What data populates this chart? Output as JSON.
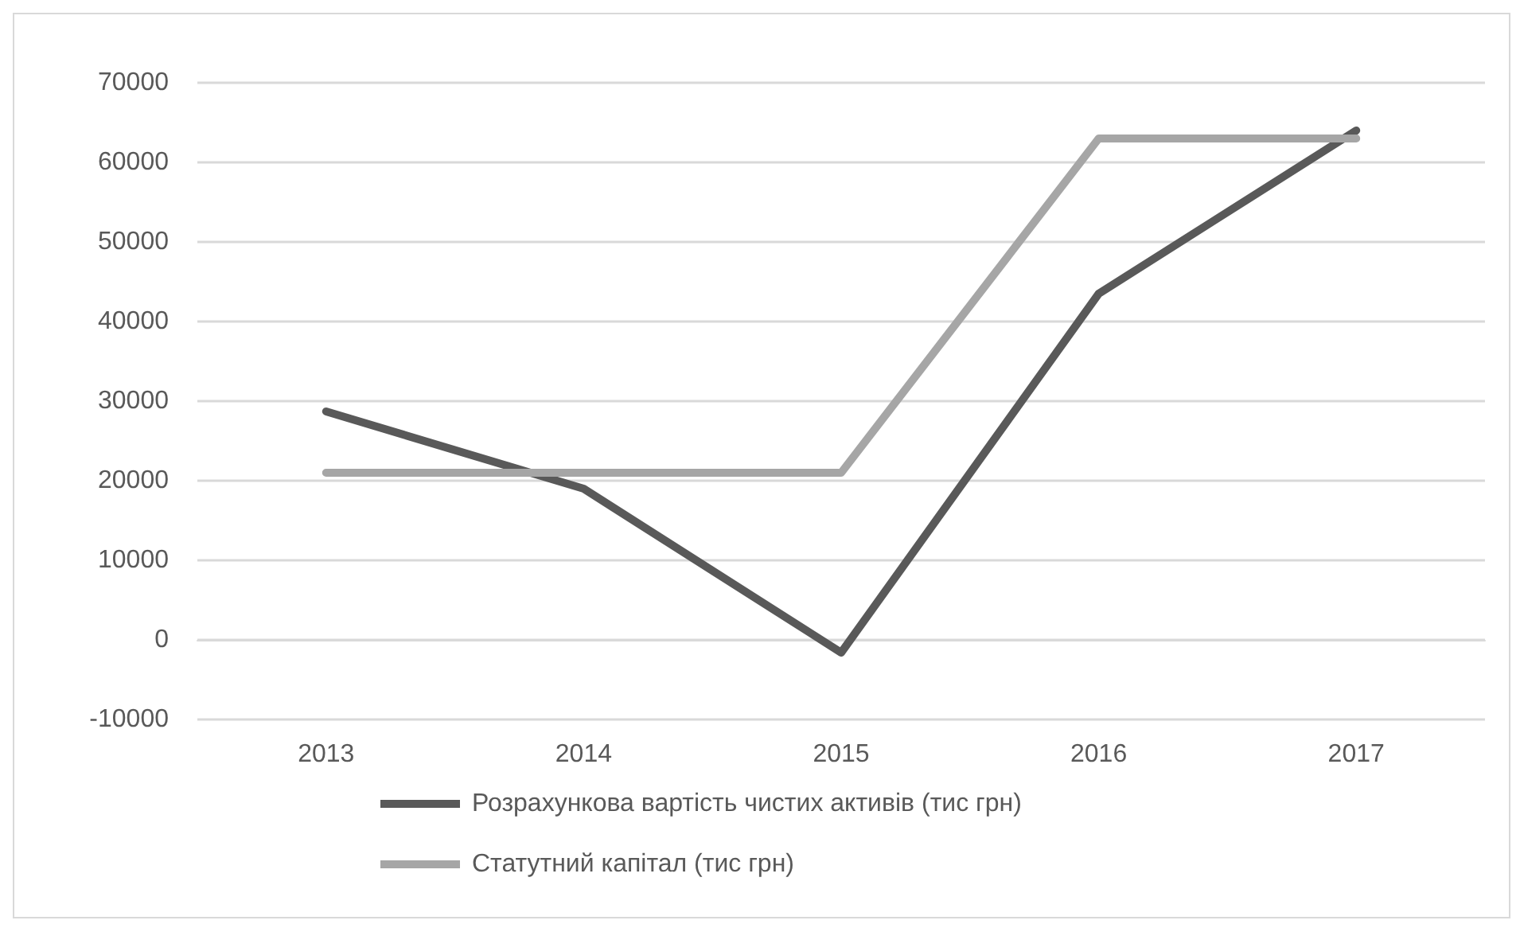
{
  "chart_data": {
    "type": "line",
    "categories": [
      "2013",
      "2014",
      "2015",
      "2016",
      "2017"
    ],
    "series": [
      {
        "name": "Розрахункова вартість чистих активів (тис грн)",
        "color": "#595959",
        "values": [
          28700,
          19000,
          -1600,
          43500,
          64000
        ]
      },
      {
        "name": "Статутний капітал (тис грн)",
        "color": "#a6a6a6",
        "values": [
          21000,
          21000,
          21000,
          63000,
          63000
        ]
      }
    ],
    "ylim": [
      -10000,
      70000
    ],
    "yticks": [
      -10000,
      0,
      10000,
      20000,
      30000,
      40000,
      50000,
      60000,
      70000
    ],
    "grid": "y",
    "legend": "bottom",
    "marker": "none",
    "line_style": "solid"
  }
}
